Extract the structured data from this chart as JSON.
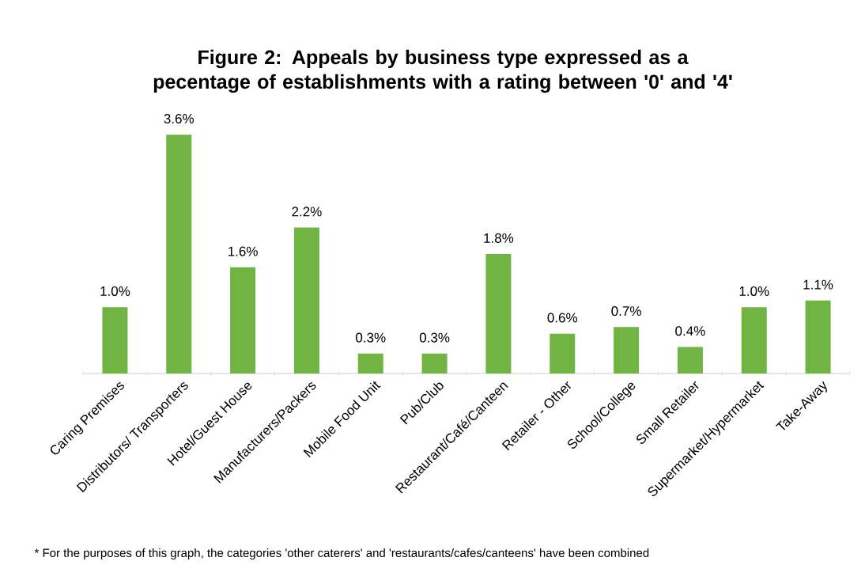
{
  "chart_data": {
    "type": "bar",
    "title": "Figure 2: Appeals by business type expressed as a pecentage of establishments with a rating between '0' and '4'",
    "categories": [
      "Caring Premises",
      "Distributors/ Transporters",
      "Hotel/Guest House",
      "Manufacturers/Packers",
      "Mobile Food Unit",
      "Pub/Club",
      "Restaurant/Café/Canteen",
      "Retailer - Other",
      "School/College",
      "Small Retailer",
      "Supermarket/Hypermarket",
      "Take-Away"
    ],
    "values": [
      1.0,
      3.6,
      1.6,
      2.2,
      0.3,
      0.3,
      1.8,
      0.6,
      0.7,
      0.4,
      1.0,
      1.1
    ],
    "value_labels": [
      "1.0%",
      "3.6%",
      "1.6%",
      "2.2%",
      "0.3%",
      "0.3%",
      "1.8%",
      "0.6%",
      "0.7%",
      "0.4%",
      "1.0%",
      "1.1%"
    ],
    "color": "#70b443",
    "annotations": [
      "* For the purposes of this graph, the categories 'other caterers' and 'restaurants/cafes/canteens' have been combined"
    ]
  }
}
